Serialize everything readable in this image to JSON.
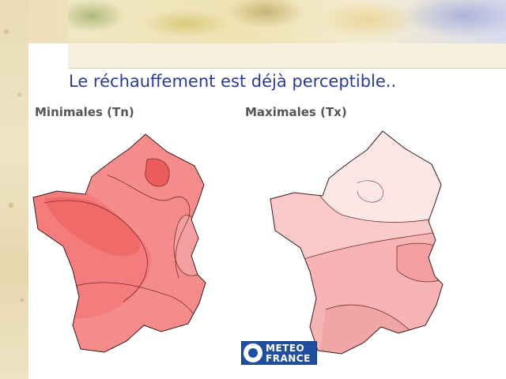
{
  "slide": {
    "title": "Le réchauffement est déjà perceptible.."
  },
  "maps": [
    {
      "label": "Minimales (Tn)",
      "base_color": "#f48c8c",
      "zone_colors": [
        "#f47c7c",
        "#f06a6a",
        "#f5a0a0",
        "#ec5c5c"
      ]
    },
    {
      "label": "Maximales (Tx)",
      "base_color": "#f9caca",
      "zone_colors": [
        "#fde6e6",
        "#f7b4b4",
        "#f4a0a0",
        "#f1a6a6"
      ]
    }
  ],
  "logo": {
    "line1": "METEO",
    "line2": "FRANCE",
    "color": "#1f4fa0"
  }
}
